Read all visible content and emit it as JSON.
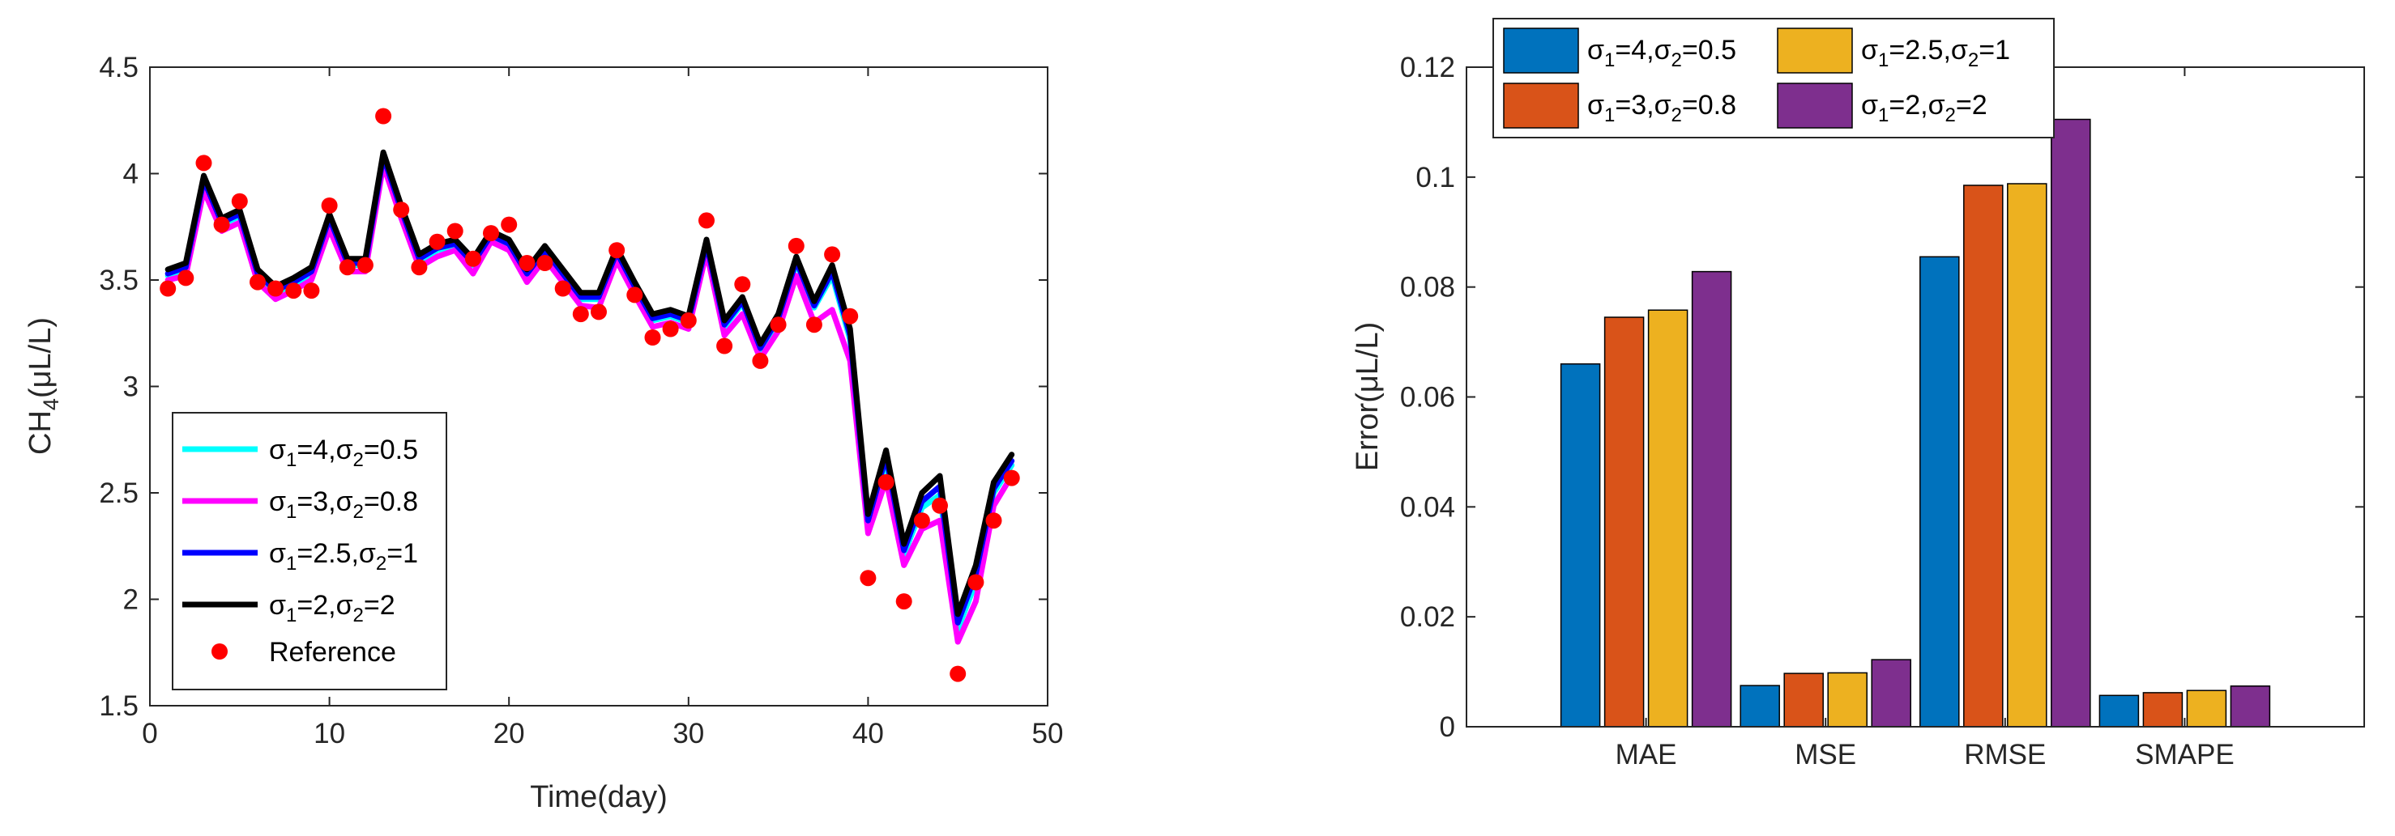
{
  "chart_data": [
    {
      "type": "line",
      "xlabel": "Time(day)",
      "ylabel_main": "CH",
      "ylabel_sub": "4",
      "ylabel_tail": "(μL/L)",
      "xlim": [
        0,
        50
      ],
      "ylim": [
        1.5,
        4.5
      ],
      "xticks": [
        0,
        10,
        20,
        30,
        40,
        50
      ],
      "yticks": [
        1.5,
        2,
        2.5,
        3,
        3.5,
        4,
        4.5
      ],
      "xticklabels": [
        "0",
        "10",
        "20",
        "30",
        "40",
        "50"
      ],
      "yticklabels": [
        "1.5",
        "2",
        "2.5",
        "3",
        "3.5",
        "4",
        "4.5"
      ],
      "legend_location": "bottom-left",
      "x": [
        1,
        2,
        3,
        4,
        5,
        6,
        7,
        8,
        9,
        10,
        11,
        12,
        13,
        14,
        15,
        16,
        17,
        18,
        19,
        20,
        21,
        22,
        23,
        24,
        25,
        26,
        27,
        28,
        29,
        30,
        31,
        32,
        33,
        34,
        35,
        36,
        37,
        38,
        39,
        40,
        41,
        42,
        43,
        44,
        45,
        46,
        47,
        48
      ],
      "series": [
        {
          "name": "σ1=4,σ2=0.5",
          "legend": {
            "s": "σ",
            "sub1": "1",
            "a": "=4,",
            "s2": "σ",
            "sub2": "2",
            "b": "=0.5"
          },
          "color": "#00FFFF",
          "values": [
            3.52,
            3.55,
            3.96,
            3.76,
            3.8,
            3.52,
            3.44,
            3.48,
            3.53,
            3.78,
            3.57,
            3.57,
            4.07,
            3.82,
            3.59,
            3.64,
            3.66,
            3.57,
            3.7,
            3.66,
            3.52,
            3.63,
            3.52,
            3.41,
            3.41,
            3.62,
            3.46,
            3.31,
            3.33,
            3.3,
            3.66,
            3.28,
            3.39,
            3.17,
            3.31,
            3.58,
            3.37,
            3.52,
            3.22,
            2.35,
            2.65,
            2.21,
            2.43,
            2.49,
            1.86,
            2.08,
            2.5,
            2.63
          ]
        },
        {
          "name": "σ1=3,σ2=0.8",
          "legend": {
            "s": "σ",
            "sub1": "1",
            "a": "=3,",
            "s2": "σ",
            "sub2": "2",
            "b": "=0.8"
          },
          "color": "#FF00FF",
          "values": [
            3.5,
            3.52,
            3.92,
            3.73,
            3.77,
            3.49,
            3.41,
            3.45,
            3.5,
            3.74,
            3.54,
            3.54,
            4.04,
            3.79,
            3.56,
            3.61,
            3.64,
            3.53,
            3.68,
            3.64,
            3.49,
            3.6,
            3.49,
            3.38,
            3.37,
            3.59,
            3.43,
            3.28,
            3.3,
            3.27,
            3.63,
            3.24,
            3.34,
            3.13,
            3.26,
            3.52,
            3.3,
            3.36,
            3.12,
            2.31,
            2.56,
            2.16,
            2.33,
            2.37,
            1.8,
            1.99,
            2.44,
            2.58
          ]
        },
        {
          "name": "σ1=2.5,σ2=1",
          "legend": {
            "s": "σ",
            "sub1": "1",
            "a": "=2.5,",
            "s2": "σ",
            "sub2": "2",
            "b": "=1"
          },
          "color": "#0000FF",
          "values": [
            3.53,
            3.56,
            3.97,
            3.77,
            3.81,
            3.53,
            3.45,
            3.49,
            3.54,
            3.79,
            3.58,
            3.58,
            4.08,
            3.83,
            3.6,
            3.65,
            3.67,
            3.58,
            3.71,
            3.67,
            3.53,
            3.64,
            3.53,
            3.42,
            3.42,
            3.63,
            3.47,
            3.32,
            3.34,
            3.31,
            3.67,
            3.29,
            3.4,
            3.18,
            3.32,
            3.59,
            3.38,
            3.54,
            3.24,
            2.37,
            2.67,
            2.23,
            2.46,
            2.53,
            1.89,
            2.12,
            2.52,
            2.65
          ]
        },
        {
          "name": "σ1=2,σ2=2",
          "legend": {
            "s": "σ",
            "sub1": "1",
            "a": "=2,",
            "s2": "σ",
            "sub2": "2",
            "b": "=2"
          },
          "color": "#000000",
          "values": [
            3.55,
            3.58,
            3.99,
            3.79,
            3.83,
            3.55,
            3.47,
            3.51,
            3.56,
            3.81,
            3.6,
            3.6,
            4.1,
            3.85,
            3.62,
            3.67,
            3.69,
            3.6,
            3.73,
            3.69,
            3.55,
            3.66,
            3.55,
            3.44,
            3.44,
            3.65,
            3.49,
            3.34,
            3.36,
            3.33,
            3.69,
            3.31,
            3.42,
            3.2,
            3.34,
            3.61,
            3.4,
            3.57,
            3.27,
            2.4,
            2.7,
            2.26,
            2.5,
            2.58,
            1.93,
            2.16,
            2.55,
            2.68
          ]
        }
      ],
      "reference": {
        "name": "Reference",
        "color": "#FF0000",
        "values": [
          3.46,
          3.51,
          4.05,
          3.76,
          3.87,
          3.49,
          3.46,
          3.45,
          3.45,
          3.85,
          3.56,
          3.57,
          4.27,
          3.83,
          3.56,
          3.68,
          3.73,
          3.6,
          3.72,
          3.76,
          3.58,
          3.58,
          3.46,
          3.34,
          3.35,
          3.64,
          3.43,
          3.23,
          3.27,
          3.31,
          3.78,
          3.19,
          3.48,
          3.12,
          3.29,
          3.66,
          3.29,
          3.62,
          3.33,
          2.1,
          2.55,
          1.99,
          2.37,
          2.44,
          1.65,
          2.08,
          2.37,
          2.57
        ]
      }
    },
    {
      "type": "bar",
      "ylabel": "Error(μL/L)",
      "categories": [
        "MAE",
        "MSE",
        "RMSE",
        "SMAPE"
      ],
      "ylim": [
        0,
        0.12
      ],
      "yticks": [
        0,
        0.02,
        0.04,
        0.06,
        0.08,
        0.1,
        0.12
      ],
      "yticklabels": [
        "0",
        "0.02",
        "0.04",
        "0.06",
        "0.08",
        "0.1",
        "0.12"
      ],
      "legend_location": "top-left",
      "series": [
        {
          "name": "σ1=4,σ2=0.5",
          "legend": {
            "s": "σ",
            "sub1": "1",
            "a": "=4,",
            "s2": "σ",
            "sub2": "2",
            "b": "=0.5"
          },
          "color": "#0072BD",
          "values": [
            0.066,
            0.0075,
            0.0855,
            0.0057
          ]
        },
        {
          "name": "σ1=3,σ2=0.8",
          "legend": {
            "s": "σ",
            "sub1": "1",
            "a": "=3,",
            "s2": "σ",
            "sub2": "2",
            "b": "=0.8"
          },
          "color": "#D95319",
          "values": [
            0.0745,
            0.0097,
            0.0985,
            0.0062
          ]
        },
        {
          "name": "σ1=2.5,σ2=1",
          "legend": {
            "s": "σ",
            "sub1": "1",
            "a": "=2.5,",
            "s2": "σ",
            "sub2": "2",
            "b": "=1"
          },
          "color": "#EDB120",
          "values": [
            0.0758,
            0.0098,
            0.0988,
            0.0066
          ]
        },
        {
          "name": "σ1=2,σ2=2",
          "legend": {
            "s": "σ",
            "sub1": "1",
            "a": "=2,",
            "s2": "σ",
            "sub2": "2",
            "b": "=2"
          },
          "color": "#7E2F8E",
          "values": [
            0.0828,
            0.0122,
            0.1105,
            0.0074
          ]
        }
      ]
    }
  ]
}
